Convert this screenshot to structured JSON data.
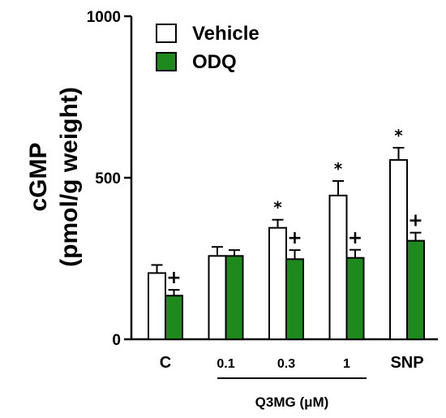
{
  "chart_data": {
    "type": "bar",
    "categories": [
      "C",
      "0.1",
      "0.3",
      "1",
      "SNP"
    ],
    "series": [
      {
        "name": "Vehicle",
        "color": "#ffffff",
        "values": [
          205,
          258,
          345,
          445,
          555
        ],
        "errors": [
          25,
          28,
          25,
          45,
          38
        ],
        "markers": [
          "",
          "",
          "*",
          "*",
          "*"
        ]
      },
      {
        "name": "ODQ",
        "color": "#1e8a1e",
        "values": [
          135,
          258,
          248,
          252,
          305
        ],
        "errors": [
          18,
          18,
          28,
          25,
          25
        ],
        "markers": [
          "+",
          "",
          "+",
          "+",
          "+"
        ]
      }
    ],
    "ylabel_line1": "cGMP",
    "ylabel_line2": "(pmol/g weight)",
    "xgroup_label": "Q3MG (μM)",
    "ylim": [
      0,
      1000
    ],
    "yticks": [
      0,
      500,
      1000
    ],
    "legend_position": "top-left",
    "grid": false
  }
}
